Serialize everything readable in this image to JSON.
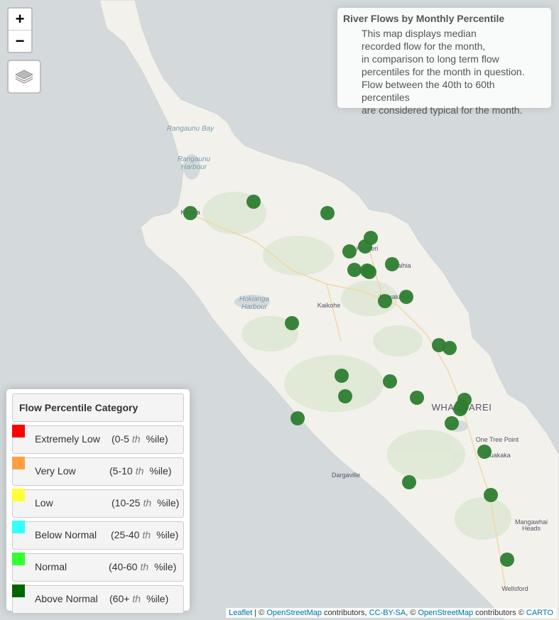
{
  "info": {
    "title": "River Flows by Monthly Percentile",
    "lines": [
      "This map displays median",
      "recorded flow for the month,",
      "in comparison to long term flow",
      "percentiles for the month in question.",
      "Flow between the 40th to 60th percentiles",
      "are considered typical for the month."
    ]
  },
  "zoom": {
    "in_label": "+",
    "out_label": "−"
  },
  "legend": {
    "title": "Flow Percentile Category",
    "items": [
      {
        "label": "Extremely Low",
        "range_open": "(0-5",
        "suffix": "th",
        "range_close": "%ile)",
        "color": "#ff0000"
      },
      {
        "label": "Very Low",
        "range_open": "(5-10",
        "suffix": "th",
        "range_close": "%ile)",
        "color": "#ffa040"
      },
      {
        "label": "Low",
        "range_open": "(10-25",
        "suffix": "th",
        "range_close": "%ile)",
        "color": "#ffff33"
      },
      {
        "label": "Below Normal",
        "range_open": "(25-40",
        "suffix": "th",
        "range_close": "%ile)",
        "color": "#33ffff"
      },
      {
        "label": "Normal",
        "range_open": "(40-60",
        "suffix": "th",
        "range_close": "%ile)",
        "color": "#33ff33"
      },
      {
        "label": "Above Normal",
        "range_open": "(60+",
        "suffix": "th",
        "range_close": "%ile)",
        "color": "#006600"
      }
    ]
  },
  "places": {
    "rangaunu_bay": "Rangaunu Bay",
    "rangaunu_harbour_1": "Rangaunu",
    "rangaunu_harbour_2": "Harbour",
    "kaitaia": "Kaitaia",
    "kerikeri": "Kerikeri",
    "paihia": "Paihia",
    "hokianga_1": "Hokianga",
    "hokianga_2": "Harbour",
    "kaikohe": "Kaikohe",
    "kawakawa": "Kawakawa",
    "whangarei": "WHANGAREI",
    "one_tree_point": "One Tree Point",
    "ruakaka": "Ruakaka",
    "dargaville": "Dargaville",
    "mangawhai_1": "Mangawhai",
    "mangawhai_2": "Heads",
    "wellsford": "Wellsford"
  },
  "sites": {
    "category": "Above Normal",
    "color": "#2e7d32",
    "count": 31
  },
  "attribution": {
    "leaflet": "Leaflet",
    "sep": " | © ",
    "osm": "OpenStreetMap",
    "contrib1": " contributors, ",
    "ccbysa": "CC-BY-SA",
    "sep2": ", © ",
    "osm2": "OpenStreetMap",
    "contrib2": " contributors © ",
    "carto": "CARTO"
  }
}
